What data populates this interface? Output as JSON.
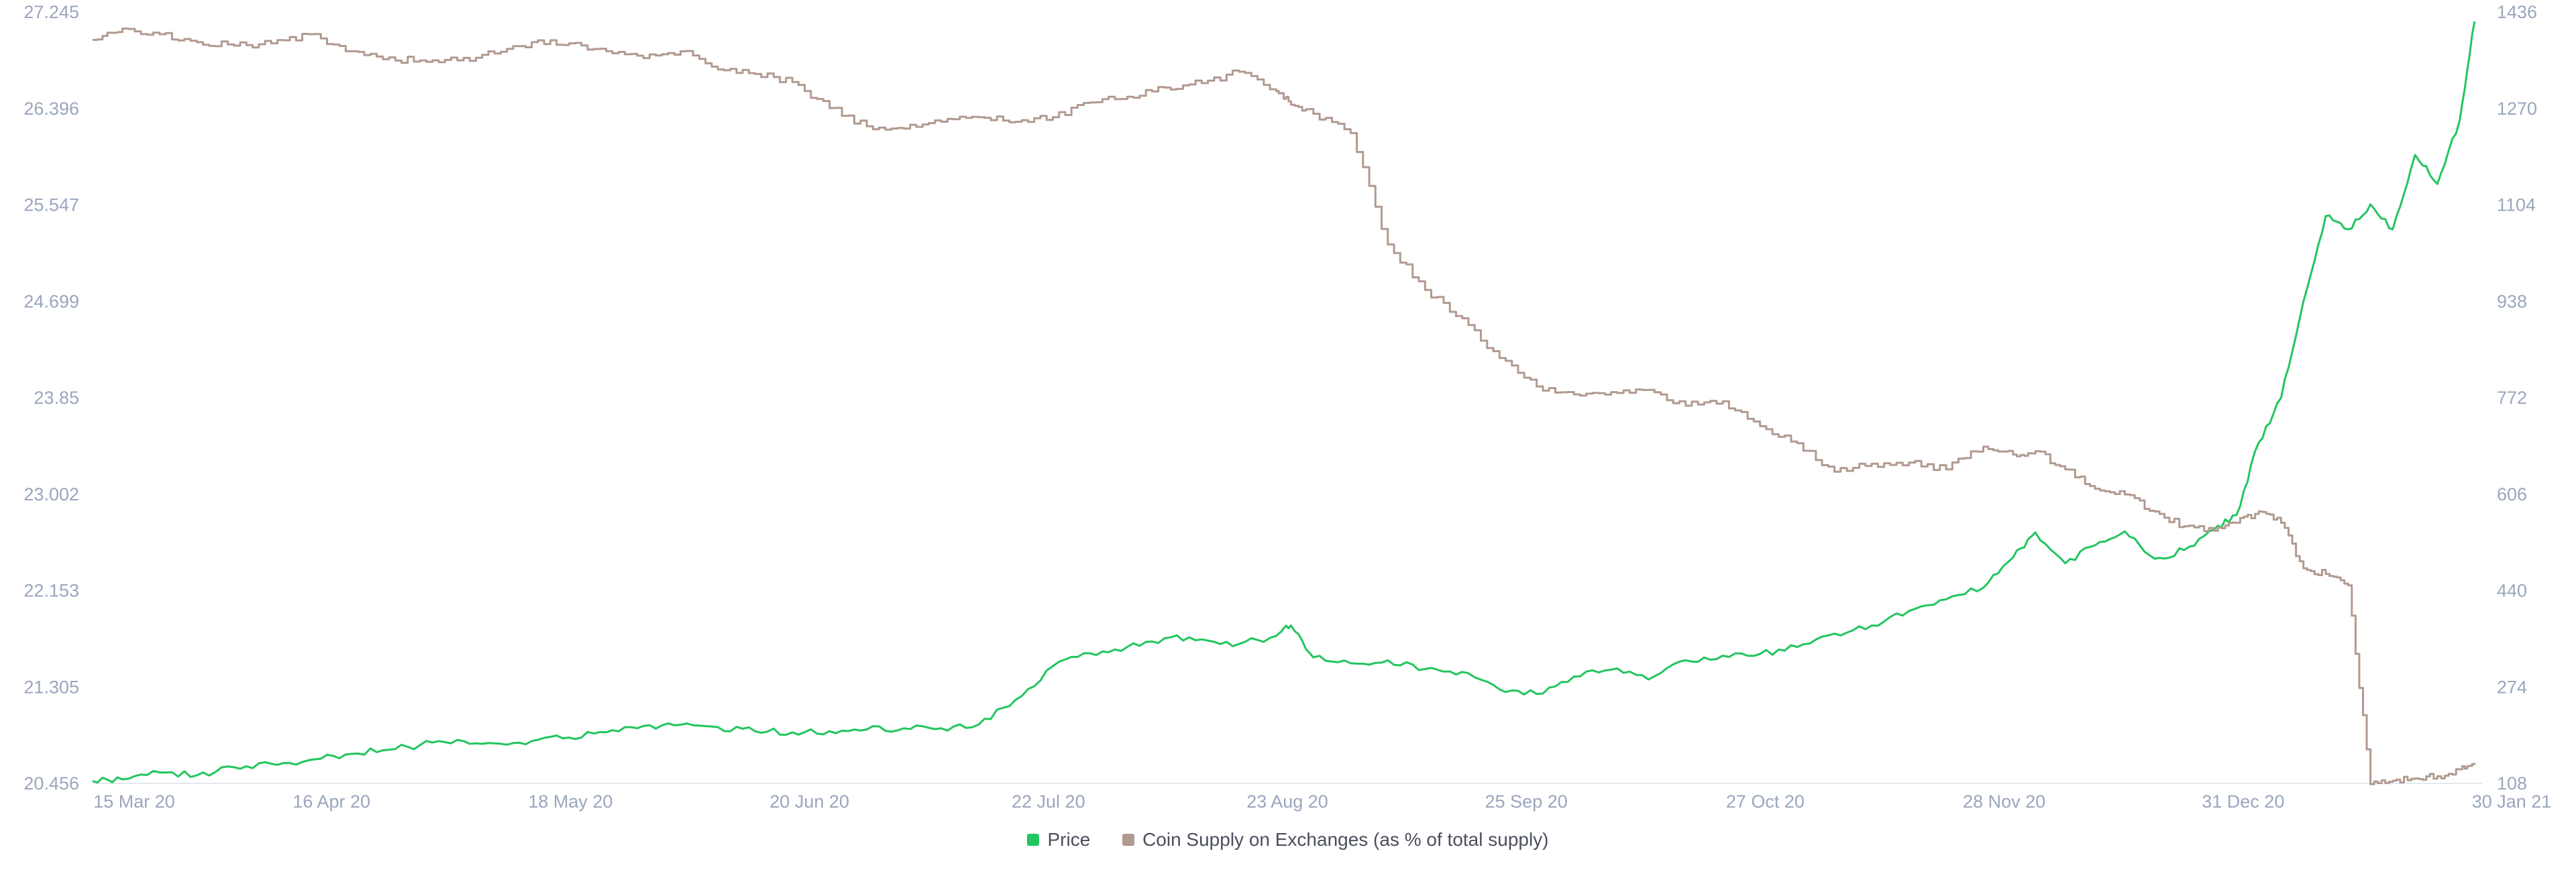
{
  "chart_data": {
    "type": "line",
    "title": "",
    "xlabel": "",
    "ylabel": "",
    "x_ticks": [
      "15 Mar 20",
      "16 Apr 20",
      "18 May 20",
      "20 Jun 20",
      "22 Jul 20",
      "23 Aug 20",
      "25 Sep 20",
      "27 Oct 20",
      "28 Nov 20",
      "31 Dec 20",
      "30 Jan 21"
    ],
    "y_left_ticks": [
      "27.245",
      "26.396",
      "25.547",
      "24.699",
      "23.85",
      "23.002",
      "22.153",
      "21.305",
      "20.456"
    ],
    "y_right_ticks": [
      "1436",
      "1270",
      "1104",
      "938",
      "772",
      "606",
      "440",
      "274",
      "108"
    ],
    "x_range": [
      "2020-03-15",
      "2021-01-30"
    ],
    "y_left_range": [
      20.456,
      27.245
    ],
    "y_right_range": [
      108,
      1436
    ],
    "legend_position": "bottom-center",
    "grid": false,
    "series": [
      {
        "name": "Price",
        "axis": "right",
        "color": "#22c55e",
        "x": [
          "2020-03-15",
          "2020-03-19",
          "2020-03-24",
          "2020-03-29",
          "2020-04-03",
          "2020-04-08",
          "2020-04-13",
          "2020-04-18",
          "2020-04-23",
          "2020-04-28",
          "2020-05-03",
          "2020-05-08",
          "2020-05-13",
          "2020-05-18",
          "2020-05-23",
          "2020-05-28",
          "2020-06-02",
          "2020-06-07",
          "2020-06-12",
          "2020-06-17",
          "2020-06-22",
          "2020-06-27",
          "2020-07-02",
          "2020-07-07",
          "2020-07-12",
          "2020-07-17",
          "2020-07-22",
          "2020-07-27",
          "2020-08-01",
          "2020-08-06",
          "2020-08-11",
          "2020-08-16",
          "2020-08-21",
          "2020-08-23",
          "2020-08-26",
          "2020-08-31",
          "2020-09-05",
          "2020-09-10",
          "2020-09-15",
          "2020-09-20",
          "2020-09-25",
          "2020-09-30",
          "2020-10-05",
          "2020-10-10",
          "2020-10-15",
          "2020-10-20",
          "2020-10-25",
          "2020-10-30",
          "2020-11-04",
          "2020-11-09",
          "2020-11-14",
          "2020-11-19",
          "2020-11-24",
          "2020-11-28",
          "2020-12-01",
          "2020-12-05",
          "2020-12-09",
          "2020-12-13",
          "2020-12-17",
          "2020-12-21",
          "2020-12-25",
          "2020-12-28",
          "2020-12-31",
          "2021-01-03",
          "2021-01-06",
          "2021-01-09",
          "2021-01-12",
          "2021-01-15",
          "2021-01-18",
          "2021-01-21",
          "2021-01-24",
          "2021-01-27",
          "2021-01-29"
        ],
        "values": [
          112,
          115,
          127,
          122,
          136,
          142,
          148,
          158,
          165,
          174,
          183,
          177,
          181,
          187,
          196,
          207,
          209,
          205,
          198,
          196,
          198,
          201,
          203,
          203,
          209,
          252,
          310,
          332,
          343,
          358,
          356,
          348,
          362,
          380,
          325,
          315,
          320,
          305,
          300,
          270,
          262,
          292,
          304,
          287,
          320,
          328,
          331,
          343,
          366,
          380,
          405,
          425,
          445,
          497,
          540,
          487,
          518,
          542,
          495,
          510,
          545,
          570,
          695,
          772,
          938,
          1085,
          1062,
          1105,
          1062,
          1190,
          1140,
          1250,
          1420
        ]
      },
      {
        "name": "Coin Supply on Exchanges (as % of total supply)",
        "axis": "left",
        "color": "#b19a90",
        "x": [
          "2020-03-15",
          "2020-03-19",
          "2020-03-24",
          "2020-03-29",
          "2020-04-03",
          "2020-04-08",
          "2020-04-13",
          "2020-04-18",
          "2020-04-23",
          "2020-04-28",
          "2020-05-03",
          "2020-05-08",
          "2020-05-13",
          "2020-05-18",
          "2020-05-23",
          "2020-05-28",
          "2020-06-02",
          "2020-06-07",
          "2020-06-12",
          "2020-06-17",
          "2020-06-22",
          "2020-06-27",
          "2020-07-02",
          "2020-07-07",
          "2020-07-12",
          "2020-07-17",
          "2020-07-22",
          "2020-07-27",
          "2020-08-01",
          "2020-08-06",
          "2020-08-11",
          "2020-08-16",
          "2020-08-21",
          "2020-08-23",
          "2020-08-26",
          "2020-08-31",
          "2020-09-05",
          "2020-09-10",
          "2020-09-15",
          "2020-09-20",
          "2020-09-25",
          "2020-09-30",
          "2020-10-05",
          "2020-10-10",
          "2020-10-15",
          "2020-10-20",
          "2020-10-25",
          "2020-10-30",
          "2020-11-04",
          "2020-11-09",
          "2020-11-14",
          "2020-11-19",
          "2020-11-24",
          "2020-11-28",
          "2020-12-01",
          "2020-12-05",
          "2020-12-09",
          "2020-12-13",
          "2020-12-17",
          "2020-12-21",
          "2020-12-25",
          "2020-12-28",
          "2020-12-31",
          "2021-01-03",
          "2021-01-06",
          "2021-01-09",
          "2021-01-12",
          "2021-01-15",
          "2021-01-18",
          "2021-01-21",
          "2021-01-24",
          "2021-01-27",
          "2021-01-29"
        ],
        "values": [
          27.0,
          27.1,
          27.05,
          26.98,
          26.95,
          26.97,
          27.05,
          26.9,
          26.83,
          26.82,
          26.82,
          26.88,
          26.98,
          26.97,
          26.9,
          26.84,
          26.9,
          26.74,
          26.7,
          26.63,
          26.4,
          26.24,
          26.22,
          26.28,
          26.32,
          26.28,
          26.32,
          26.45,
          26.5,
          26.58,
          26.62,
          26.72,
          26.55,
          26.43,
          26.35,
          26.18,
          25.2,
          24.8,
          24.55,
          24.2,
          23.95,
          23.88,
          23.9,
          23.92,
          23.78,
          23.82,
          23.6,
          23.45,
          23.2,
          23.27,
          23.28,
          23.22,
          23.42,
          23.35,
          23.38,
          23.22,
          23.05,
          23.0,
          22.85,
          22.72,
          22.68,
          22.75,
          22.85,
          22.75,
          22.35,
          22.3,
          22.2,
          20.45,
          20.48,
          20.5,
          20.52,
          20.58,
          20.62
        ]
      }
    ]
  }
}
